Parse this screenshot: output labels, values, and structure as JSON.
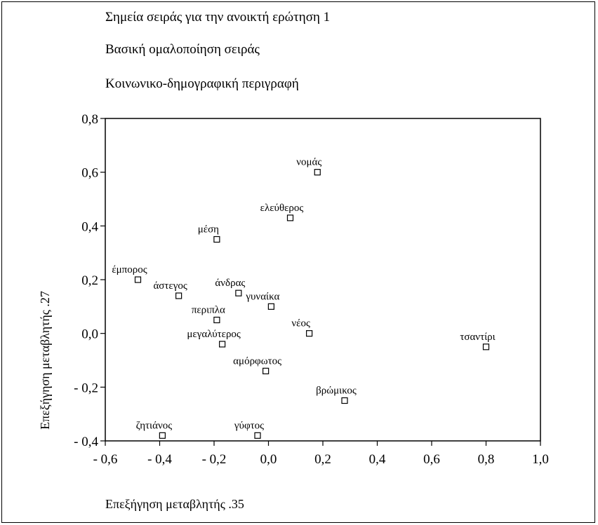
{
  "titles": [
    "Σημεία σειράς για την ανοικτή ερώτηση 1",
    "Βασική ομαλοποίηση σειράς",
    "Κοινωνικο-δημογραφική περιγραφή"
  ],
  "chart_data": {
    "type": "scatter",
    "xlabel": "Επεξήγηση μεταβλητής .35",
    "ylabel": "Επεξήγηση μεταβλητής .27",
    "xlim": [
      -0.6,
      1.0
    ],
    "ylim": [
      -0.4,
      0.8
    ],
    "xticks": [
      -0.6,
      -0.4,
      -0.2,
      0.0,
      0.2,
      0.4,
      0.6,
      0.8,
      1.0
    ],
    "yticks": [
      -0.4,
      -0.2,
      0.0,
      0.2,
      0.4,
      0.6,
      0.8
    ],
    "xtick_labels": [
      "- 0,6",
      "- 0,4",
      "- 0,2",
      "0,0",
      "0,2",
      "0,4",
      "0,6",
      "0,8",
      "1,0"
    ],
    "ytick_labels": [
      "- 0,4",
      "- 0,2",
      "0,0",
      "0,2",
      "0,4",
      "0,6",
      "0,8"
    ],
    "grid": false,
    "marker": "open-square",
    "points": [
      {
        "label": "νομάς",
        "x": 0.18,
        "y": 0.6
      },
      {
        "label": "ελεύθερος",
        "x": 0.08,
        "y": 0.43
      },
      {
        "label": "μέση",
        "x": -0.19,
        "y": 0.35
      },
      {
        "label": "έμπορος",
        "x": -0.48,
        "y": 0.2
      },
      {
        "label": "άστεγος",
        "x": -0.33,
        "y": 0.14
      },
      {
        "label": "άνδρας",
        "x": -0.11,
        "y": 0.15
      },
      {
        "label": "γυναίκα",
        "x": 0.01,
        "y": 0.1
      },
      {
        "label": "περιπλα",
        "x": -0.19,
        "y": 0.05
      },
      {
        "label": "νέος",
        "x": 0.15,
        "y": 0.0
      },
      {
        "label": "μεγαλύτερος",
        "x": -0.17,
        "y": -0.04
      },
      {
        "label": "τσαντίρι",
        "x": 0.8,
        "y": -0.05
      },
      {
        "label": "αμόρφωτος",
        "x": -0.01,
        "y": -0.14
      },
      {
        "label": "βρώμικος",
        "x": 0.28,
        "y": -0.25
      },
      {
        "label": "ζητιάνος",
        "x": -0.39,
        "y": -0.38
      },
      {
        "label": "γύφτος",
        "x": -0.04,
        "y": -0.38
      }
    ]
  }
}
